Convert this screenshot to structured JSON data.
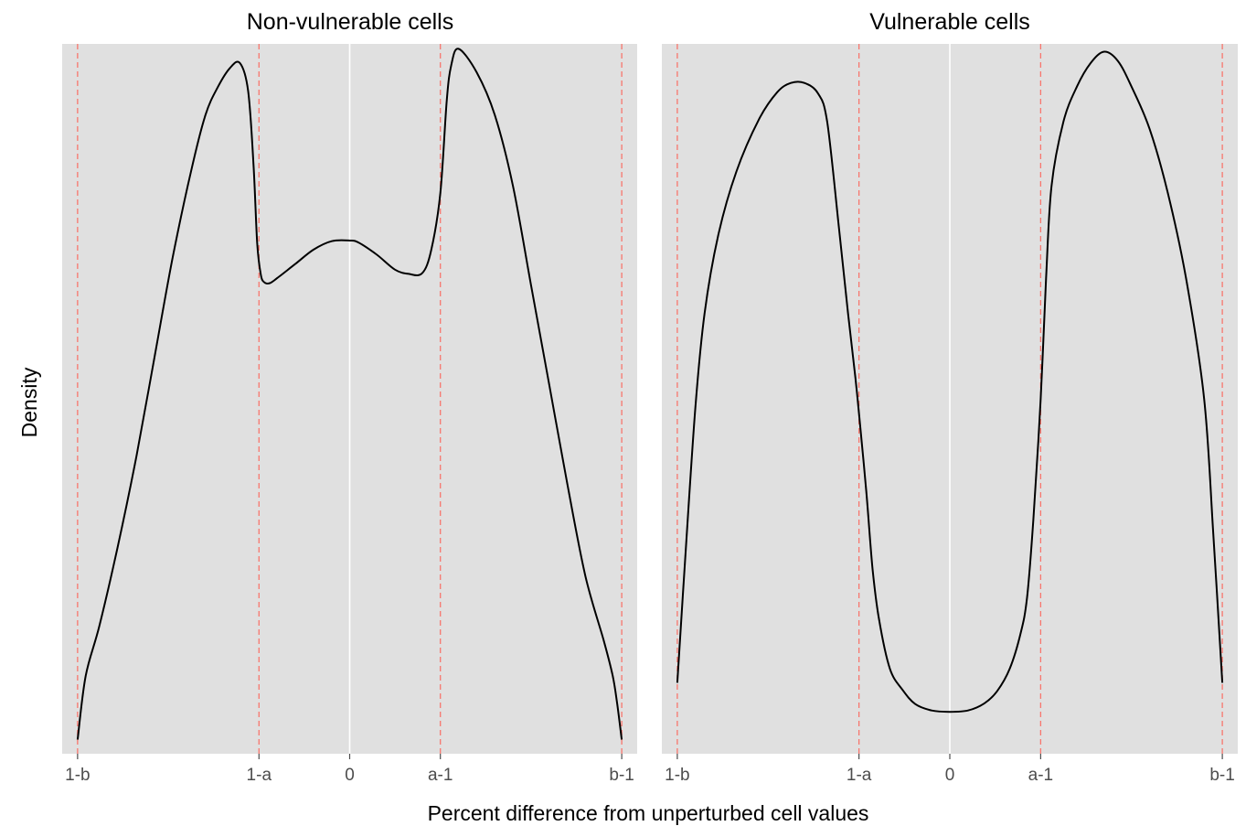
{
  "chart_data": {
    "type": "line",
    "xlabel": "Percent difference from unperturbed cell values",
    "ylabel": "Density",
    "x_tick_labels": [
      "1-b",
      "1-a",
      "0",
      "a-1",
      "b-1"
    ],
    "x_tick_positions": [
      -0.3,
      -0.1,
      0.0,
      0.1,
      0.3
    ],
    "xlim": [
      -0.317,
      0.317
    ],
    "ylim": [
      0,
      1
    ],
    "grid": false,
    "reference_lines": {
      "dashed_red_at": [
        -0.3,
        -0.1,
        0.1,
        0.3
      ],
      "solid_white_at": [
        0.0
      ],
      "color": "#f8766d"
    },
    "colors": {
      "line": "#000000",
      "panel_bg": "#e0e0e0",
      "zero_line": "#ffffff",
      "tick_text": "#4d4d4d"
    },
    "panels": [
      {
        "title": "Non-vulnerable cells",
        "x": [
          -0.3,
          -0.291,
          -0.276,
          -0.256,
          -0.235,
          -0.215,
          -0.195,
          -0.175,
          -0.159,
          -0.145,
          -0.132,
          -0.121,
          -0.112,
          -0.106,
          -0.102,
          -0.098,
          -0.094,
          -0.088,
          -0.08,
          -0.06,
          -0.04,
          -0.02,
          0.0,
          0.01,
          0.03,
          0.05,
          0.065,
          0.08,
          0.09,
          0.1,
          0.107,
          0.112,
          0.12,
          0.14,
          0.16,
          0.18,
          0.2,
          0.22,
          0.24,
          0.26,
          0.28,
          0.29,
          0.295,
          0.3
        ],
        "y": [
          0.02,
          0.11,
          0.18,
          0.29,
          0.42,
          0.56,
          0.7,
          0.82,
          0.9,
          0.94,
          0.966,
          0.973,
          0.934,
          0.83,
          0.72,
          0.675,
          0.664,
          0.663,
          0.67,
          0.69,
          0.71,
          0.722,
          0.723,
          0.72,
          0.703,
          0.682,
          0.676,
          0.677,
          0.71,
          0.79,
          0.92,
          0.97,
          0.993,
          0.96,
          0.9,
          0.8,
          0.66,
          0.52,
          0.38,
          0.25,
          0.16,
          0.11,
          0.07,
          0.02
        ]
      },
      {
        "title": "Vulnerable cells",
        "x": [
          -0.3,
          -0.29,
          -0.28,
          -0.27,
          -0.255,
          -0.235,
          -0.21,
          -0.19,
          -0.175,
          -0.16,
          -0.145,
          -0.135,
          -0.122,
          -0.112,
          -0.104,
          -0.1,
          -0.092,
          -0.085,
          -0.078,
          -0.066,
          -0.052,
          -0.038,
          -0.02,
          0.0,
          0.02,
          0.038,
          0.052,
          0.066,
          0.078,
          0.085,
          0.092,
          0.1,
          0.106,
          0.112,
          0.125,
          0.14,
          0.155,
          0.17,
          0.185,
          0.2,
          0.22,
          0.24,
          0.26,
          0.28,
          0.29,
          0.3
        ],
        "y": [
          0.1,
          0.3,
          0.49,
          0.62,
          0.73,
          0.82,
          0.894,
          0.932,
          0.945,
          0.945,
          0.93,
          0.89,
          0.74,
          0.62,
          0.53,
          0.48,
          0.37,
          0.26,
          0.19,
          0.12,
          0.09,
          0.07,
          0.061,
          0.059,
          0.061,
          0.071,
          0.088,
          0.12,
          0.17,
          0.22,
          0.33,
          0.5,
          0.67,
          0.8,
          0.89,
          0.94,
          0.973,
          0.989,
          0.976,
          0.94,
          0.88,
          0.79,
          0.67,
          0.5,
          0.31,
          0.1
        ]
      }
    ]
  }
}
